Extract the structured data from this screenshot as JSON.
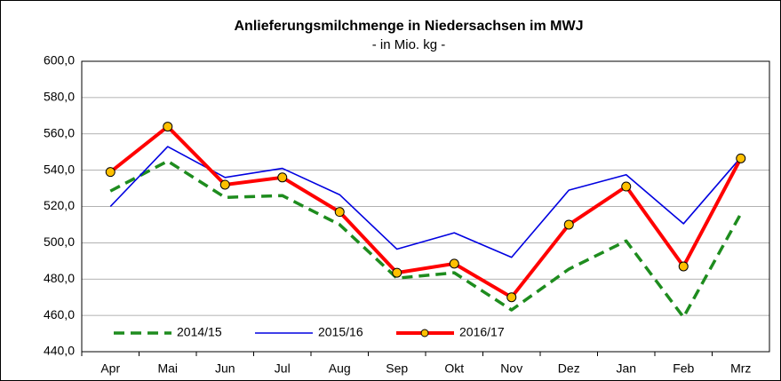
{
  "chart_data": {
    "type": "line",
    "title": "Anlieferungsmilchmenge in Niedersachsen im MWJ",
    "subtitle": "- in Mio. kg -",
    "categories": [
      "Apr",
      "Mai",
      "Jun",
      "Jul",
      "Aug",
      "Sep",
      "Okt",
      "Nov",
      "Dez",
      "Jan",
      "Feb",
      "Mrz"
    ],
    "series": [
      {
        "name": "2014/15",
        "color": "#1e8c1e",
        "dashed": true,
        "markers": false,
        "values": [
          528.5,
          545,
          525,
          526,
          510,
          480.5,
          483.5,
          463,
          485.5,
          501,
          459,
          516
        ]
      },
      {
        "name": "2015/16",
        "color": "#0000e0",
        "dashed": false,
        "markers": false,
        "values": [
          520,
          553,
          536,
          541,
          526.5,
          496.5,
          505.5,
          492,
          529,
          537.5,
          510.5,
          547
        ]
      },
      {
        "name": "2016/17",
        "color": "#ff0000",
        "dashed": false,
        "markers": true,
        "marker_color": "#ffc000",
        "values": [
          539,
          564,
          532,
          536,
          517,
          483.5,
          488.5,
          470,
          510,
          531,
          487,
          546.5
        ]
      }
    ],
    "ylim": [
      440,
      600
    ],
    "yticks": [
      {
        "value": 440,
        "label": "440,0"
      },
      {
        "value": 460,
        "label": "460,0"
      },
      {
        "value": 480,
        "label": "480,0"
      },
      {
        "value": 500,
        "label": "500,0"
      },
      {
        "value": 520,
        "label": "520,0"
      },
      {
        "value": 540,
        "label": "540,0"
      },
      {
        "value": 560,
        "label": "560,0"
      },
      {
        "value": 580,
        "label": "580,0"
      },
      {
        "value": 600,
        "label": "600,0"
      }
    ],
    "grid": true,
    "legend": "bottom-left"
  }
}
